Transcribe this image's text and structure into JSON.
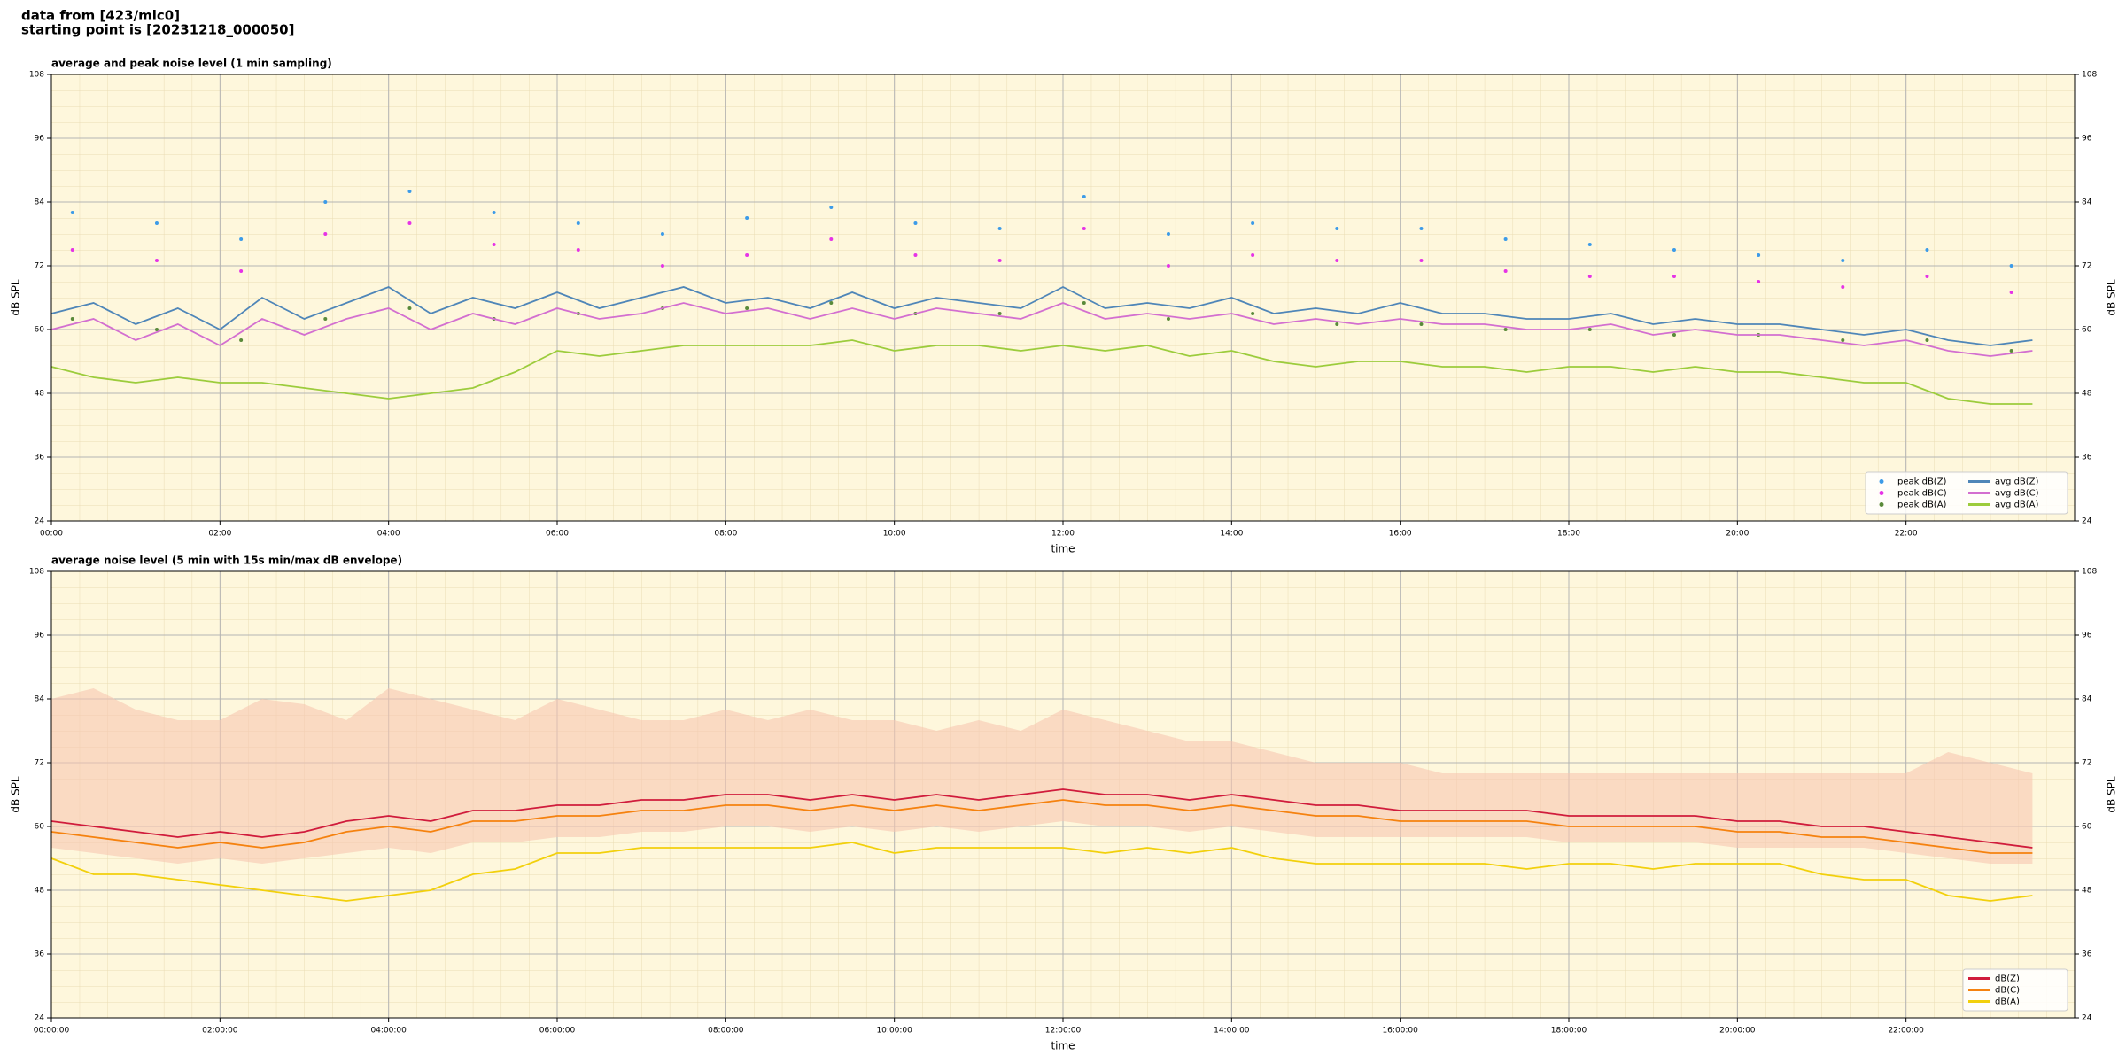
{
  "header": [
    "data from [423/mic0]",
    "starting point is [20231218_000050]"
  ],
  "chart_data": [
    {
      "type": "line",
      "title": "average and peak noise level (1 min sampling)",
      "xlabel": "time",
      "ylabel": "dB SPL",
      "background": "#fef7dc",
      "grid": true,
      "legend": "lower right",
      "legend_columns": 2,
      "xlim": [
        0,
        24
      ],
      "ylim": [
        24,
        108
      ],
      "xticks": [
        {
          "value": 0,
          "label": "00:00"
        },
        {
          "value": 2,
          "label": "02:00"
        },
        {
          "value": 4,
          "label": "04:00"
        },
        {
          "value": 6,
          "label": "06:00"
        },
        {
          "value": 8,
          "label": "08:00"
        },
        {
          "value": 10,
          "label": "10:00"
        },
        {
          "value": 12,
          "label": "12:00"
        },
        {
          "value": 14,
          "label": "14:00"
        },
        {
          "value": 16,
          "label": "16:00"
        },
        {
          "value": 18,
          "label": "18:00"
        },
        {
          "value": 20,
          "label": "20:00"
        },
        {
          "value": 22,
          "label": "22:00"
        }
      ],
      "yticks": [
        24,
        36,
        48,
        60,
        72,
        84,
        96,
        108
      ],
      "x": [
        0,
        0.5,
        1,
        1.5,
        2,
        2.5,
        3,
        3.5,
        4,
        4.5,
        5,
        5.5,
        6,
        6.5,
        7,
        7.5,
        8,
        8.5,
        9,
        9.5,
        10,
        10.5,
        11,
        11.5,
        12,
        12.5,
        13,
        13.5,
        14,
        14.5,
        15,
        15.5,
        16,
        16.5,
        17,
        17.5,
        18,
        18.5,
        19,
        19.5,
        20,
        20.5,
        21,
        21.5,
        22,
        22.5,
        23,
        23.5
      ],
      "series": [
        {
          "name": "peak dB(Z)",
          "type": "scatter",
          "color": "#3c9be8",
          "x": [
            0.25,
            1.25,
            2.25,
            3.25,
            4.25,
            5.25,
            6.25,
            7.25,
            8.25,
            9.25,
            10.25,
            11.25,
            12.25,
            13.25,
            14.25,
            15.25,
            16.25,
            17.25,
            18.25,
            19.25,
            20.25,
            21.25,
            22.25,
            23.25
          ],
          "values": [
            82,
            80,
            77,
            84,
            86,
            82,
            80,
            78,
            81,
            83,
            80,
            79,
            85,
            78,
            80,
            79,
            79,
            77,
            76,
            75,
            74,
            73,
            75,
            72
          ]
        },
        {
          "name": "peak dB(C)",
          "type": "scatter",
          "color": "#e633e6",
          "x": [
            0.25,
            1.25,
            2.25,
            3.25,
            4.25,
            5.25,
            6.25,
            7.25,
            8.25,
            9.25,
            10.25,
            11.25,
            12.25,
            13.25,
            14.25,
            15.25,
            16.25,
            17.25,
            18.25,
            19.25,
            20.25,
            21.25,
            22.25,
            23.25
          ],
          "values": [
            75,
            73,
            71,
            78,
            80,
            76,
            75,
            72,
            74,
            77,
            74,
            73,
            79,
            72,
            74,
            73,
            73,
            71,
            70,
            70,
            69,
            68,
            70,
            67
          ]
        },
        {
          "name": "peak dB(A)",
          "type": "scatter",
          "color": "#5a8a3a",
          "x": [
            0.25,
            1.25,
            2.25,
            3.25,
            4.25,
            5.25,
            6.25,
            7.25,
            8.25,
            9.25,
            10.25,
            11.25,
            12.25,
            13.25,
            14.25,
            15.25,
            16.25,
            17.25,
            18.25,
            19.25,
            20.25,
            21.25,
            22.25,
            23.25
          ],
          "values": [
            62,
            60,
            58,
            62,
            64,
            62,
            63,
            64,
            64,
            65,
            63,
            63,
            65,
            62,
            63,
            61,
            61,
            60,
            60,
            59,
            59,
            58,
            58,
            56
          ]
        },
        {
          "name": "avg dB(Z)",
          "color": "#4f86b8",
          "values": [
            63,
            65,
            61,
            64,
            60,
            66,
            62,
            65,
            68,
            63,
            66,
            64,
            67,
            64,
            66,
            68,
            65,
            66,
            64,
            67,
            64,
            66,
            65,
            64,
            68,
            64,
            65,
            64,
            66,
            63,
            64,
            63,
            65,
            63,
            63,
            62,
            62,
            63,
            61,
            62,
            61,
            61,
            60,
            59,
            60,
            58,
            57,
            58
          ]
        },
        {
          "name": "avg dB(C)",
          "color": "#d36fd0",
          "values": [
            60,
            62,
            58,
            61,
            57,
            62,
            59,
            62,
            64,
            60,
            63,
            61,
            64,
            62,
            63,
            65,
            63,
            64,
            62,
            64,
            62,
            64,
            63,
            62,
            65,
            62,
            63,
            62,
            63,
            61,
            62,
            61,
            62,
            61,
            61,
            60,
            60,
            61,
            59,
            60,
            59,
            59,
            58,
            57,
            58,
            56,
            55,
            56
          ]
        },
        {
          "name": "avg dB(A)",
          "color": "#9ccc3c",
          "values": [
            53,
            51,
            50,
            51,
            50,
            50,
            49,
            48,
            47,
            48,
            49,
            52,
            56,
            55,
            56,
            57,
            57,
            57,
            57,
            58,
            56,
            57,
            57,
            56,
            57,
            56,
            57,
            55,
            56,
            54,
            53,
            54,
            54,
            53,
            53,
            52,
            53,
            53,
            52,
            53,
            52,
            52,
            51,
            50,
            50,
            47,
            46,
            46
          ]
        }
      ]
    },
    {
      "type": "line",
      "title": "average noise level (5 min with 15s min/max dB envelope)",
      "xlabel": "time",
      "ylabel": "dB SPL",
      "background": "#fef7dc",
      "grid": true,
      "legend": "lower right",
      "legend_columns": 1,
      "xlim": [
        0,
        24
      ],
      "ylim": [
        24,
        108
      ],
      "xticks": [
        {
          "value": 0,
          "label": "00:00:00"
        },
        {
          "value": 2,
          "label": "02:00:00"
        },
        {
          "value": 4,
          "label": "04:00:00"
        },
        {
          "value": 6,
          "label": "06:00:00"
        },
        {
          "value": 8,
          "label": "08:00:00"
        },
        {
          "value": 10,
          "label": "10:00:00"
        },
        {
          "value": 12,
          "label": "12:00:00"
        },
        {
          "value": 14,
          "label": "14:00:00"
        },
        {
          "value": 16,
          "label": "16:00:00"
        },
        {
          "value": 18,
          "label": "18:00:00"
        },
        {
          "value": 20,
          "label": "20:00:00"
        },
        {
          "value": 22,
          "label": "22:00:00"
        }
      ],
      "yticks": [
        24,
        36,
        48,
        60,
        72,
        84,
        96,
        108
      ],
      "x": [
        0,
        0.5,
        1,
        1.5,
        2,
        2.5,
        3,
        3.5,
        4,
        4.5,
        5,
        5.5,
        6,
        6.5,
        7,
        7.5,
        8,
        8.5,
        9,
        9.5,
        10,
        10.5,
        11,
        11.5,
        12,
        12.5,
        13,
        13.5,
        14,
        14.5,
        15,
        15.5,
        16,
        16.5,
        17,
        17.5,
        18,
        18.5,
        19,
        19.5,
        20,
        20.5,
        21,
        21.5,
        22,
        22.5,
        23,
        23.5
      ],
      "envelope": {
        "color": "#f6c7b0",
        "lower": [
          56,
          55,
          54,
          53,
          54,
          53,
          54,
          55,
          56,
          55,
          57,
          57,
          58,
          58,
          59,
          59,
          60,
          60,
          59,
          60,
          59,
          60,
          59,
          60,
          61,
          60,
          60,
          59,
          60,
          59,
          58,
          58,
          58,
          58,
          58,
          58,
          57,
          57,
          57,
          57,
          56,
          56,
          56,
          56,
          55,
          54,
          53,
          53
        ],
        "upper": [
          84,
          86,
          82,
          80,
          80,
          84,
          83,
          80,
          86,
          84,
          82,
          80,
          84,
          82,
          80,
          80,
          82,
          80,
          82,
          80,
          80,
          78,
          80,
          78,
          82,
          80,
          78,
          76,
          76,
          74,
          72,
          72,
          72,
          70,
          70,
          70,
          70,
          70,
          70,
          70,
          70,
          70,
          70,
          70,
          70,
          74,
          72,
          70
        ]
      },
      "series": [
        {
          "name": "dB(Z)",
          "color": "#d01c3c",
          "values": [
            61,
            60,
            59,
            58,
            59,
            58,
            59,
            61,
            62,
            61,
            63,
            63,
            64,
            64,
            65,
            65,
            66,
            66,
            65,
            66,
            65,
            66,
            65,
            66,
            67,
            66,
            66,
            65,
            66,
            65,
            64,
            64,
            63,
            63,
            63,
            63,
            62,
            62,
            62,
            62,
            61,
            61,
            60,
            60,
            59,
            58,
            57,
            56
          ]
        },
        {
          "name": "dB(C)",
          "color": "#f5820f",
          "values": [
            59,
            58,
            57,
            56,
            57,
            56,
            57,
            59,
            60,
            59,
            61,
            61,
            62,
            62,
            63,
            63,
            64,
            64,
            63,
            64,
            63,
            64,
            63,
            64,
            65,
            64,
            64,
            63,
            64,
            63,
            62,
            62,
            61,
            61,
            61,
            61,
            60,
            60,
            60,
            60,
            59,
            59,
            58,
            58,
            57,
            56,
            55,
            55
          ]
        },
        {
          "name": "dB(A)",
          "color": "#f2d00c",
          "values": [
            54,
            51,
            51,
            50,
            49,
            48,
            47,
            46,
            47,
            48,
            51,
            52,
            55,
            55,
            56,
            56,
            56,
            56,
            56,
            57,
            55,
            56,
            56,
            56,
            56,
            55,
            56,
            55,
            56,
            54,
            53,
            53,
            53,
            53,
            53,
            52,
            53,
            53,
            52,
            53,
            53,
            53,
            51,
            50,
            50,
            47,
            46,
            47
          ]
        }
      ]
    }
  ]
}
